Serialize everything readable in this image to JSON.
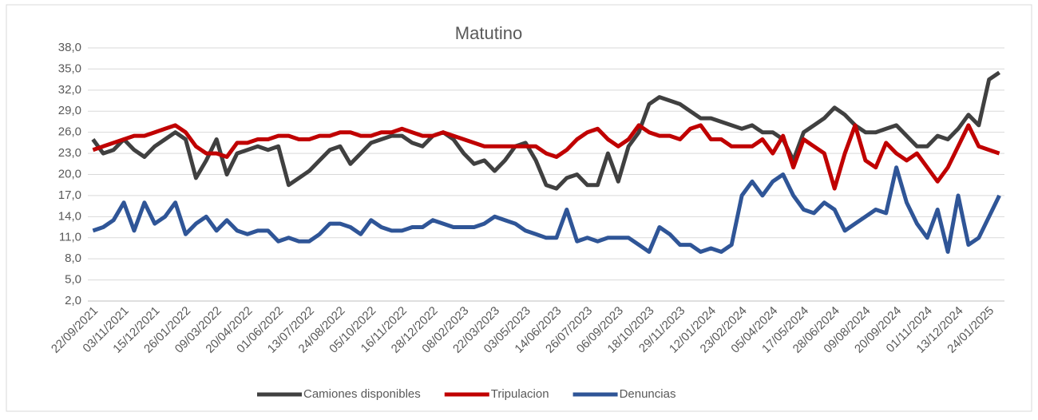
{
  "chart_data": {
    "type": "line",
    "title": "Matutino",
    "categories": [
      "22/09/2021",
      null,
      null,
      "03/11/2021",
      null,
      null,
      "15/12/2021",
      null,
      null,
      "26/01/2022",
      null,
      null,
      "09/03/2022",
      null,
      null,
      "20/04/2022",
      null,
      null,
      "01/06/2022",
      null,
      null,
      "13/07/2022",
      null,
      null,
      "24/08/2022",
      null,
      null,
      "05/10/2022",
      null,
      null,
      "16/11/2022",
      null,
      null,
      "28/12/2022",
      null,
      null,
      "08/02/2023",
      null,
      null,
      "22/03/2023",
      null,
      null,
      "03/05/2023",
      null,
      null,
      "14/06/2023",
      null,
      null,
      "26/07/2023",
      null,
      null,
      "06/09/2023",
      null,
      null,
      "18/10/2023",
      null,
      null,
      "29/11/2023",
      null,
      null,
      "12/01/2024",
      null,
      null,
      "23/02/2024",
      null,
      null,
      "05/04/2024",
      null,
      null,
      "17/05/2024",
      null,
      null,
      "28/06/2024",
      null,
      null,
      "09/08/2024",
      null,
      null,
      "20/09/2024",
      null,
      null,
      "01/11/2024",
      null,
      null,
      "13/12/2024",
      null,
      null,
      "24/01/2025",
      null
    ],
    "series": [
      {
        "name": "Camiones disponibles",
        "color": "#404040",
        "values": [
          25,
          23,
          23.5,
          25,
          23.5,
          22.5,
          24,
          25,
          26,
          25,
          19.5,
          22,
          25,
          20,
          23,
          23.5,
          24,
          23.5,
          24,
          18.5,
          19.5,
          20.5,
          22,
          23.5,
          24,
          21.5,
          23,
          24.5,
          25,
          25.5,
          25.5,
          24.5,
          24,
          25.5,
          26,
          25,
          23,
          21.5,
          22,
          20.5,
          22,
          24,
          24.5,
          22,
          18.5,
          18,
          19.5,
          20,
          18.5,
          18.5,
          23,
          19,
          24,
          26,
          30,
          31,
          30.5,
          30,
          29,
          28,
          28,
          27.5,
          27,
          26.5,
          27,
          26,
          26,
          25,
          22,
          26,
          27,
          28,
          29.5,
          28.5,
          27,
          26,
          26,
          26.5,
          27,
          25.5,
          24,
          24,
          25.5,
          25,
          26.5,
          28.5,
          27,
          33.5,
          34.5
        ]
      },
      {
        "name": "Tripulacion",
        "color": "#c00000",
        "values": [
          23.5,
          24,
          24.5,
          25,
          25.5,
          25.5,
          26,
          26.5,
          27,
          26,
          24,
          23,
          23,
          22.5,
          24.5,
          24.5,
          25,
          25,
          25.5,
          25.5,
          25,
          25,
          25.5,
          25.5,
          26,
          26,
          25.5,
          25.5,
          26,
          26,
          26.5,
          26,
          25.5,
          25.5,
          26,
          25.5,
          25,
          24.5,
          24,
          24,
          24,
          24,
          24,
          24,
          23,
          22.5,
          23.5,
          25,
          26,
          26.5,
          25,
          24,
          25,
          27,
          26,
          25.5,
          25.5,
          25,
          26.5,
          27,
          25,
          25,
          24,
          24,
          24,
          25,
          23,
          25.5,
          21,
          25,
          24,
          23,
          18,
          23,
          27,
          22,
          21,
          24.5,
          23,
          22,
          23,
          21,
          19,
          21,
          24,
          27,
          24,
          23.5,
          23
        ]
      },
      {
        "name": "Denuncias",
        "color": "#2f5597",
        "values": [
          12,
          12.5,
          13.5,
          16,
          12,
          16,
          13,
          14,
          16,
          11.5,
          13,
          14,
          12,
          13.5,
          12,
          11.5,
          12,
          12,
          10.5,
          11,
          10.5,
          10.5,
          11.5,
          13,
          13,
          12.5,
          11.5,
          13.5,
          12.5,
          12,
          12,
          12.5,
          12.5,
          13.5,
          13,
          12.5,
          12.5,
          12.5,
          13,
          14,
          13.5,
          13,
          12,
          11.5,
          11,
          11,
          15,
          10.5,
          11,
          10.5,
          11,
          11,
          11,
          10,
          9,
          12.5,
          11.5,
          10,
          10,
          9,
          9.5,
          9,
          10,
          17,
          19,
          17,
          19,
          20,
          17,
          15,
          14.5,
          16,
          15,
          12,
          13,
          14,
          15,
          14.5,
          21,
          16,
          13,
          11,
          15,
          9,
          17,
          10,
          11,
          14,
          17
        ]
      }
    ],
    "ylim": [
      2,
      38
    ],
    "yticks": [
      {
        "value": 2,
        "label": "2,0"
      },
      {
        "value": 5,
        "label": "5,0"
      },
      {
        "value": 8,
        "label": "8,0"
      },
      {
        "value": 11,
        "label": "11,0"
      },
      {
        "value": 14,
        "label": "14,0"
      },
      {
        "value": 17,
        "label": "17,0"
      },
      {
        "value": 20,
        "label": "20,0"
      },
      {
        "value": 23,
        "label": "23,0"
      },
      {
        "value": 26,
        "label": "26,0"
      },
      {
        "value": 29,
        "label": "29,0"
      },
      {
        "value": 32,
        "label": "32,0"
      },
      {
        "value": 35,
        "label": "35,0"
      },
      {
        "value": 38,
        "label": "38,0"
      }
    ],
    "grid": true,
    "legend": "bottom"
  }
}
